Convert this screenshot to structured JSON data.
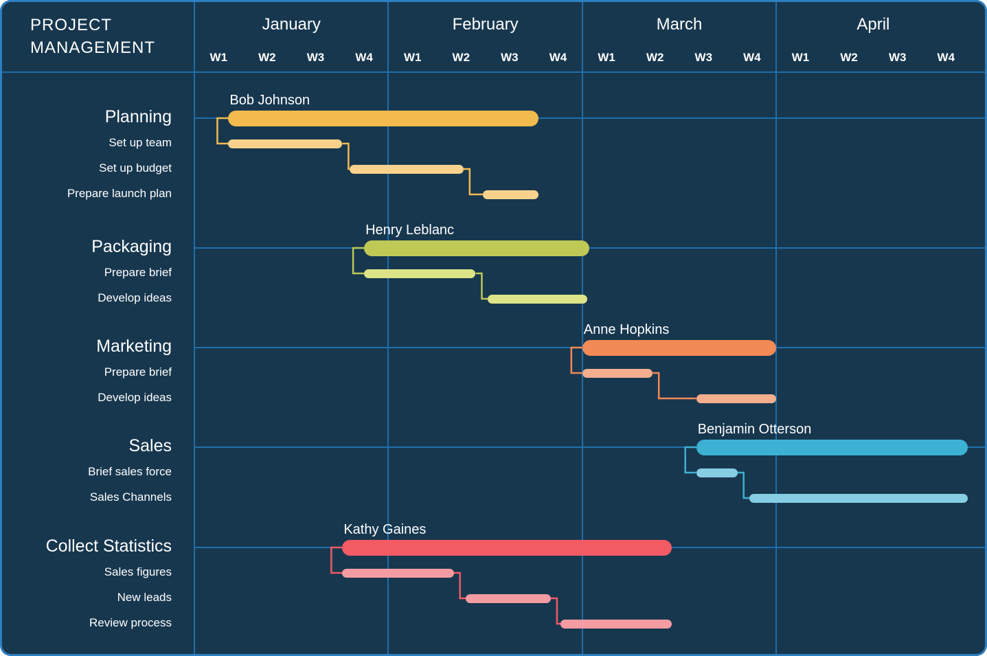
{
  "header": {
    "title": "PROJECT MANAGEMENT"
  },
  "colors": {
    "background": "#17374E",
    "border": "#2E7FC0",
    "grid": "#1E6FAD",
    "text": "#FFFFFF"
  },
  "chart_data": {
    "type": "gantt",
    "title": "PROJECT MANAGEMENT",
    "x_axis": {
      "months": [
        "January",
        "February",
        "March",
        "April"
      ],
      "weeks_per_month": 4,
      "week_labels": [
        "W1",
        "W2",
        "W3",
        "W4"
      ],
      "total_weeks": 16
    },
    "sections": [
      {
        "name": "Planning",
        "assignee": "Bob Johnson",
        "color": "#F3BB4E",
        "light_color": "#F8D28D",
        "bar": {
          "start_week": 0.7,
          "end_week": 7.1
        },
        "tasks": [
          {
            "name": "Set up team",
            "start_week": 0.7,
            "end_week": 3.05
          },
          {
            "name": "Set up budget",
            "start_week": 3.2,
            "end_week": 5.55
          },
          {
            "name": "Prepare launch plan",
            "start_week": 5.95,
            "end_week": 7.1
          }
        ]
      },
      {
        "name": "Packaging",
        "assignee": "Henry Leblanc",
        "color": "#BFC955",
        "light_color": "#DDE387",
        "bar": {
          "start_week": 3.5,
          "end_week": 8.15
        },
        "tasks": [
          {
            "name": "Prepare brief",
            "start_week": 3.5,
            "end_week": 5.8
          },
          {
            "name": "Develop ideas",
            "start_week": 6.05,
            "end_week": 8.1
          }
        ]
      },
      {
        "name": "Marketing",
        "assignee": "Anne Hopkins",
        "color": "#F18A57",
        "light_color": "#F2AE8E",
        "bar": {
          "start_week": 8.0,
          "end_week": 12.0
        },
        "tasks": [
          {
            "name": "Prepare brief",
            "start_week": 8.0,
            "end_week": 9.45
          },
          {
            "name": "Develop ideas",
            "start_week": 10.35,
            "end_week": 12.0
          }
        ]
      },
      {
        "name": "Sales",
        "assignee": "Benjamin Otterson",
        "color": "#3DB1D3",
        "light_color": "#86CDE4",
        "bar": {
          "start_week": 10.35,
          "end_week": 15.95
        },
        "tasks": [
          {
            "name": "Brief sales force",
            "start_week": 10.35,
            "end_week": 11.2
          },
          {
            "name": "Sales Channels",
            "start_week": 11.45,
            "end_week": 15.95
          }
        ]
      },
      {
        "name": "Collect Statistics",
        "assignee": "Kathy Gaines",
        "color": "#F25A64",
        "light_color": "#F59CA3",
        "bar": {
          "start_week": 3.05,
          "end_week": 9.85
        },
        "tasks": [
          {
            "name": "Sales figures",
            "start_week": 3.05,
            "end_week": 5.35
          },
          {
            "name": "New leads",
            "start_week": 5.6,
            "end_week": 7.35
          },
          {
            "name": "Review process",
            "start_week": 7.55,
            "end_week": 9.85
          }
        ]
      }
    ]
  }
}
